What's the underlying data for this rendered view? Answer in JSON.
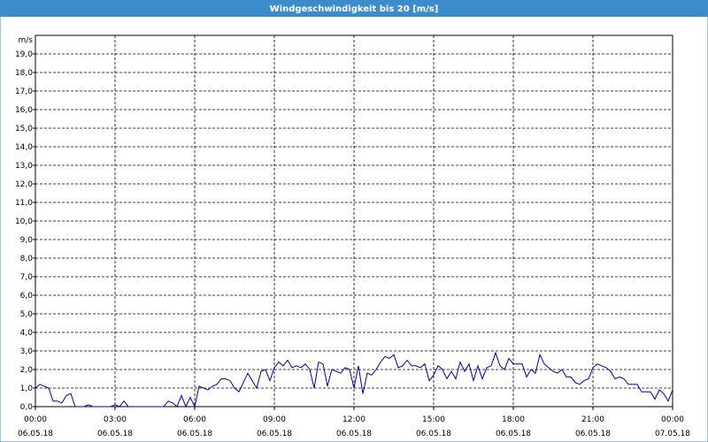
{
  "chart_data": {
    "type": "line",
    "title": "Windgeschwindigkeit bis 20 [m/s]",
    "y_label": "m/s",
    "color": "#0000a0",
    "grid": true,
    "xlim": [
      "06.05.18 00:00",
      "07.05.18 00:00"
    ],
    "xticks": [
      {
        "value": "06.05.18 00:00",
        "label": [
          "00:00",
          "06.05.18"
        ]
      },
      {
        "value": "06.05.18 03:00",
        "label": [
          "03:00",
          "06.05.18"
        ]
      },
      {
        "value": "06.05.18 06:00",
        "label": [
          "06:00",
          "06.05.18"
        ]
      },
      {
        "value": "06.05.18 09:00",
        "label": [
          "09:00",
          "06.05.18"
        ]
      },
      {
        "value": "06.05.18 12:00",
        "label": [
          "12:00",
          "06.05.18"
        ]
      },
      {
        "value": "06.05.18 15:00",
        "label": [
          "15:00",
          "06.05.18"
        ]
      },
      {
        "value": "06.05.18 18:00",
        "label": [
          "18:00",
          "06.05.18"
        ]
      },
      {
        "value": "06.05.18 21:00",
        "label": [
          "21:00",
          "06.05.18"
        ]
      },
      {
        "value": "07.05.18 00:00",
        "label": [
          "00:00",
          "07.05.18"
        ]
      }
    ],
    "ylim": [
      0,
      20
    ],
    "yticks": [
      {
        "value": 0,
        "label": "0,0"
      },
      {
        "value": 1,
        "label": "1,0"
      },
      {
        "value": 2,
        "label": "2,0"
      },
      {
        "value": 3,
        "label": "3,0"
      },
      {
        "value": 4,
        "label": "4,0"
      },
      {
        "value": 5,
        "label": "5,0"
      },
      {
        "value": 6,
        "label": "6,0"
      },
      {
        "value": 7,
        "label": "7,0"
      },
      {
        "value": 8,
        "label": "8,0"
      },
      {
        "value": 9,
        "label": "9,0"
      },
      {
        "value": 10,
        "label": "10,0"
      },
      {
        "value": 11,
        "label": "11,0"
      },
      {
        "value": 12,
        "label": "12,0"
      },
      {
        "value": 13,
        "label": "13,0"
      },
      {
        "value": 14,
        "label": "14,0"
      },
      {
        "value": 15,
        "label": "15,0"
      },
      {
        "value": 16,
        "label": "16,0"
      },
      {
        "value": 17,
        "label": "17,0"
      },
      {
        "value": 18,
        "label": "18,0"
      },
      {
        "value": 19,
        "label": "19,0"
      }
    ],
    "x": [
      "06.05.18 00:00",
      "06.05.18 00:10",
      "06.05.18 00:20",
      "06.05.18 00:30",
      "06.05.18 00:40",
      "06.05.18 00:50",
      "06.05.18 01:00",
      "06.05.18 01:10",
      "06.05.18 01:20",
      "06.05.18 01:30",
      "06.05.18 01:40",
      "06.05.18 01:50",
      "06.05.18 02:00",
      "06.05.18 02:10",
      "06.05.18 02:20",
      "06.05.18 02:30",
      "06.05.18 02:40",
      "06.05.18 02:50",
      "06.05.18 03:00",
      "06.05.18 03:10",
      "06.05.18 03:20",
      "06.05.18 03:30",
      "06.05.18 03:40",
      "06.05.18 03:50",
      "06.05.18 04:00",
      "06.05.18 04:10",
      "06.05.18 04:20",
      "06.05.18 04:30",
      "06.05.18 04:40",
      "06.05.18 04:50",
      "06.05.18 05:00",
      "06.05.18 05:10",
      "06.05.18 05:20",
      "06.05.18 05:30",
      "06.05.18 05:40",
      "06.05.18 05:50",
      "06.05.18 06:00",
      "06.05.18 06:10",
      "06.05.18 06:20",
      "06.05.18 06:30",
      "06.05.18 06:40",
      "06.05.18 06:50",
      "06.05.18 07:00",
      "06.05.18 07:10",
      "06.05.18 07:20",
      "06.05.18 07:30",
      "06.05.18 07:40",
      "06.05.18 07:50",
      "06.05.18 08:00",
      "06.05.18 08:10",
      "06.05.18 08:20",
      "06.05.18 08:30",
      "06.05.18 08:40",
      "06.05.18 08:50",
      "06.05.18 09:00",
      "06.05.18 09:10",
      "06.05.18 09:20",
      "06.05.18 09:30",
      "06.05.18 09:40",
      "06.05.18 09:50",
      "06.05.18 10:00",
      "06.05.18 10:10",
      "06.05.18 10:20",
      "06.05.18 10:30",
      "06.05.18 10:40",
      "06.05.18 10:50",
      "06.05.18 11:00",
      "06.05.18 11:10",
      "06.05.18 11:20",
      "06.05.18 11:30",
      "06.05.18 11:40",
      "06.05.18 11:50",
      "06.05.18 12:00",
      "06.05.18 12:10",
      "06.05.18 12:20",
      "06.05.18 12:30",
      "06.05.18 12:40",
      "06.05.18 12:50",
      "06.05.18 13:00",
      "06.05.18 13:10",
      "06.05.18 13:20",
      "06.05.18 13:30",
      "06.05.18 13:40",
      "06.05.18 13:50",
      "06.05.18 14:00",
      "06.05.18 14:10",
      "06.05.18 14:20",
      "06.05.18 14:30",
      "06.05.18 14:40",
      "06.05.18 14:50",
      "06.05.18 15:00",
      "06.05.18 15:10",
      "06.05.18 15:20",
      "06.05.18 15:30",
      "06.05.18 15:40",
      "06.05.18 15:50",
      "06.05.18 16:00",
      "06.05.18 16:10",
      "06.05.18 16:20",
      "06.05.18 16:30",
      "06.05.18 16:40",
      "06.05.18 16:50",
      "06.05.18 17:00",
      "06.05.18 17:10",
      "06.05.18 17:20",
      "06.05.18 17:30",
      "06.05.18 17:40",
      "06.05.18 17:50",
      "06.05.18 18:00",
      "06.05.18 18:10",
      "06.05.18 18:20",
      "06.05.18 18:30",
      "06.05.18 18:40",
      "06.05.18 18:50",
      "06.05.18 19:00",
      "06.05.18 19:10",
      "06.05.18 19:20",
      "06.05.18 19:30",
      "06.05.18 19:40",
      "06.05.18 19:50",
      "06.05.18 20:00",
      "06.05.18 20:10",
      "06.05.18 20:20",
      "06.05.18 20:30",
      "06.05.18 20:40",
      "06.05.18 20:50",
      "06.05.18 21:00",
      "06.05.18 21:10",
      "06.05.18 21:20",
      "06.05.18 21:30",
      "06.05.18 21:40",
      "06.05.18 21:50",
      "06.05.18 22:00",
      "06.05.18 22:10",
      "06.05.18 22:20",
      "06.05.18 22:30",
      "06.05.18 22:40",
      "06.05.18 22:50",
      "06.05.18 23:00",
      "06.05.18 23:10",
      "06.05.18 23:20",
      "06.05.18 23:30",
      "06.05.18 23:40",
      "06.05.18 23:50",
      "07.05.18 00:00"
    ],
    "values": [
      1.0,
      1.2,
      1.1,
      1.0,
      0.3,
      0.3,
      0.2,
      0.6,
      0.7,
      0.0,
      0.0,
      0.0,
      0.1,
      0.0,
      0.0,
      0.0,
      0.0,
      0.0,
      0.1,
      0.0,
      0.3,
      0.0,
      0.0,
      0.0,
      0.0,
      0.0,
      0.0,
      0.0,
      0.0,
      0.0,
      0.3,
      0.2,
      0.0,
      0.6,
      0.0,
      0.5,
      0.0,
      1.1,
      1.0,
      0.9,
      1.1,
      1.2,
      1.5,
      1.5,
      1.4,
      1.0,
      0.8,
      1.3,
      1.8,
      1.4,
      1.0,
      1.9,
      2.0,
      1.4,
      2.1,
      2.4,
      2.2,
      2.5,
      2.1,
      2.2,
      2.1,
      2.3,
      2.0,
      1.0,
      2.4,
      2.3,
      1.1,
      2.0,
      1.9,
      1.8,
      2.1,
      2.0,
      1.0,
      2.2,
      0.7,
      1.8,
      1.7,
      2.0,
      2.4,
      2.7,
      2.6,
      2.8,
      2.1,
      2.2,
      2.5,
      2.2,
      2.2,
      2.1,
      2.3,
      1.4,
      1.7,
      2.2,
      2.0,
      1.5,
      1.9,
      1.5,
      2.4,
      1.9,
      2.3,
      1.4,
      2.2,
      1.5,
      2.1,
      2.2,
      2.9,
      2.2,
      2.0,
      2.6,
      2.3,
      2.3,
      2.3,
      1.6,
      2.0,
      1.8,
      2.8,
      2.3,
      2.1,
      1.9,
      1.8,
      2.0,
      1.6,
      1.6,
      1.3,
      1.2,
      1.4,
      1.5,
      2.1,
      2.3,
      2.2,
      2.1,
      1.9,
      1.5,
      1.6,
      1.5,
      1.2,
      1.2,
      1.2,
      0.8,
      0.8,
      0.8,
      0.4,
      0.9,
      0.7,
      0.3,
      0.9
    ]
  }
}
